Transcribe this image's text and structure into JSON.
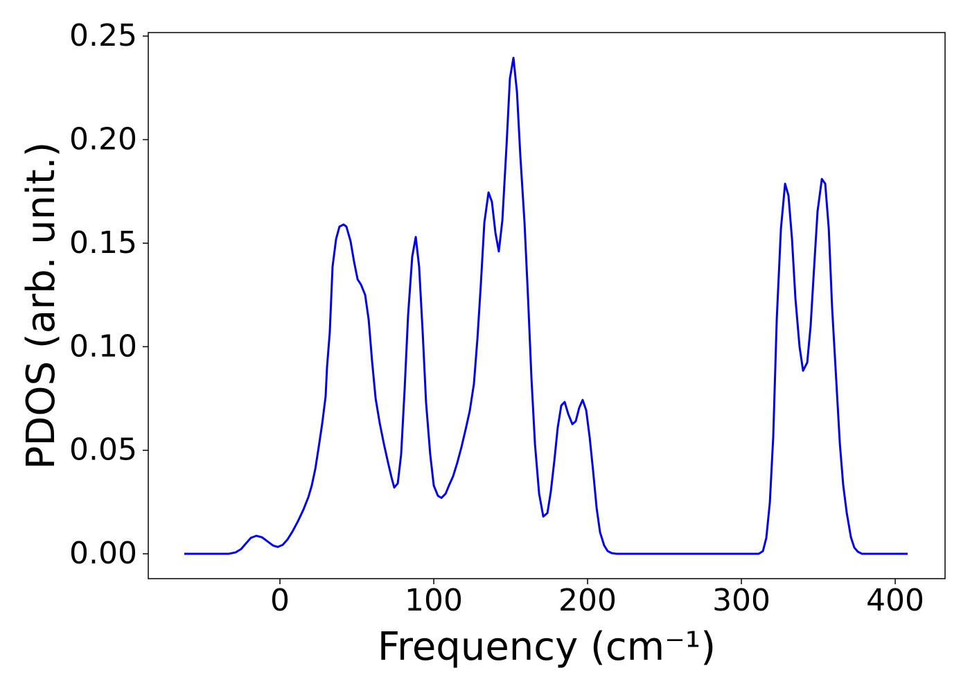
{
  "chart_data": {
    "type": "line",
    "xlabel": "Frequency (cm⁻¹)",
    "ylabel": "PDOS (arb. unit.)",
    "xlim": [
      -85.6,
      432.4
    ],
    "ylim": [
      -0.012,
      0.2517
    ],
    "xticks": [
      0,
      100,
      200,
      300,
      400
    ],
    "yticks": [
      {
        "value": 0,
        "label": "0.00"
      },
      {
        "value": 0.05,
        "label": "0.05"
      },
      {
        "value": 0.1,
        "label": "0.10"
      },
      {
        "value": 0.15,
        "label": "0.15"
      },
      {
        "value": 0.2,
        "label": "0.20"
      },
      {
        "value": 0.25,
        "label": "0.25"
      }
    ],
    "grid": false,
    "series": [
      {
        "color": "#0000ee",
        "x": [
          -62.2,
          -33.3,
          -28.8,
          -25.2,
          -22.1,
          -18.9,
          -15.3,
          -11.7,
          -8.1,
          -4.5,
          -1.4,
          1.8,
          5,
          8.1,
          11.7,
          15.3,
          18.5,
          20.7,
          23,
          25.2,
          27.5,
          29.7,
          30.6,
          32.4,
          34.2,
          36.5,
          38.7,
          41.4,
          43.2,
          45.9,
          48.2,
          50.5,
          52.7,
          55.4,
          57.7,
          59.9,
          62.2,
          64.9,
          67.6,
          70.3,
          72.5,
          74.3,
          76.6,
          78.8,
          81.1,
          83.3,
          86,
          88.3,
          90.5,
          92.8,
          95,
          97.7,
          100,
          102.7,
          105,
          107.7,
          109.9,
          112.6,
          115.3,
          118,
          120.7,
          123.4,
          126.1,
          128.4,
          130.6,
          132.9,
          135.6,
          137.8,
          140.1,
          142.3,
          144.6,
          147.3,
          149.5,
          151.8,
          154.1,
          156.3,
          159,
          161.3,
          163.5,
          165.8,
          168.5,
          171.2,
          173.9,
          176.1,
          178.4,
          180.6,
          182.9,
          185.1,
          187.4,
          190.1,
          192.3,
          194.6,
          196.8,
          199.1,
          201.4,
          203.6,
          205.9,
          208.1,
          210.8,
          213.1,
          215.8,
          219,
          311.3,
          314,
          316.2,
          318.5,
          320.7,
          323,
          325.7,
          328.4,
          330.6,
          332.9,
          335.1,
          337.8,
          340.1,
          342.8,
          345,
          347.3,
          349.5,
          352.3,
          354.5,
          356.8,
          359,
          361.7,
          364,
          366.2,
          368.5,
          371.2,
          373.4,
          375.7,
          378.4,
          408.1
        ],
        "values": [
          0,
          0,
          0.0007,
          0.0023,
          0.005,
          0.0077,
          0.0087,
          0.008,
          0.006,
          0.004,
          0.0033,
          0.0043,
          0.007,
          0.0107,
          0.0157,
          0.0214,
          0.0274,
          0.033,
          0.041,
          0.0515,
          0.063,
          0.076,
          0.09,
          0.107,
          0.1386,
          0.152,
          0.158,
          0.159,
          0.158,
          0.151,
          0.141,
          0.1325,
          0.13,
          0.125,
          0.113,
          0.093,
          0.075,
          0.063,
          0.053,
          0.044,
          0.037,
          0.032,
          0.034,
          0.048,
          0.08,
          0.115,
          0.1435,
          0.153,
          0.1385,
          0.107,
          0.073,
          0.048,
          0.033,
          0.028,
          0.027,
          0.029,
          0.033,
          0.0375,
          0.044,
          0.0515,
          0.06,
          0.069,
          0.082,
          0.104,
          0.13,
          0.16,
          0.1745,
          0.17,
          0.155,
          0.146,
          0.161,
          0.197,
          0.2295,
          0.2395,
          0.223,
          0.192,
          0.16,
          0.1235,
          0.085,
          0.053,
          0.029,
          0.018,
          0.0197,
          0.03,
          0.045,
          0.061,
          0.0716,
          0.0733,
          0.0676,
          0.0626,
          0.064,
          0.0706,
          0.0743,
          0.0693,
          0.056,
          0.04,
          0.022,
          0.0104,
          0.004,
          0.0013,
          0.0003,
          0,
          0,
          0.0013,
          0.0077,
          0.0248,
          0.0566,
          0.1135,
          0.157,
          0.1787,
          0.173,
          0.152,
          0.1235,
          0.1,
          0.0884,
          0.0924,
          0.11,
          0.1386,
          0.1653,
          0.181,
          0.1787,
          0.157,
          0.1185,
          0.0833,
          0.0532,
          0.0331,
          0.0197,
          0.008,
          0.003,
          0.001,
          0,
          0
        ]
      }
    ]
  }
}
